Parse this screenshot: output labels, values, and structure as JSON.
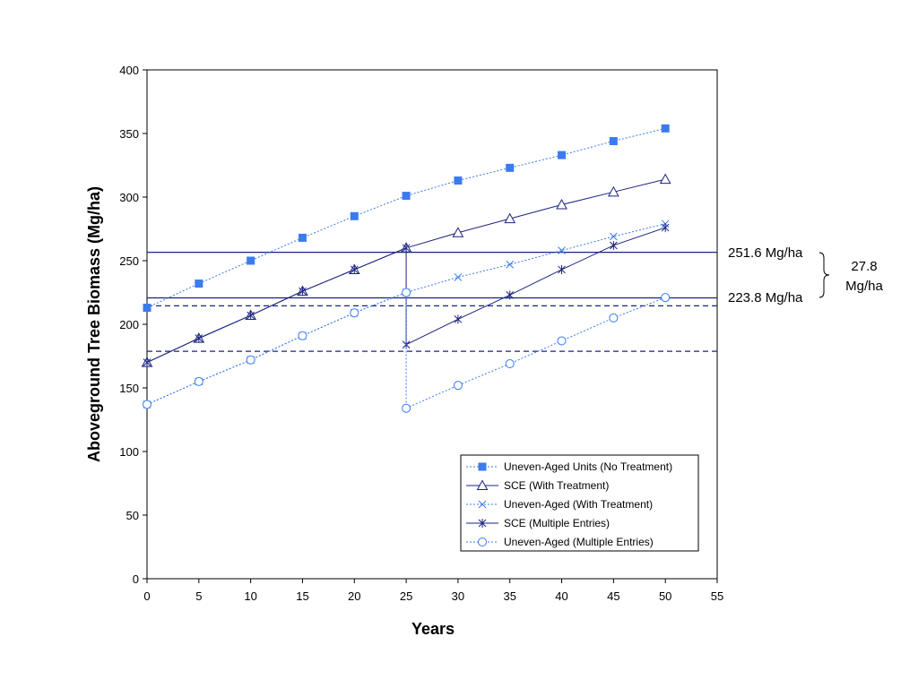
{
  "chart_data": {
    "type": "line",
    "title": "",
    "xlabel": "Years",
    "ylabel": "Aboveground Tree Biomass (Mg/ha)",
    "xlim": [
      0,
      55
    ],
    "ylim": [
      0,
      400
    ],
    "xticks": [
      0,
      5,
      10,
      15,
      20,
      25,
      30,
      35,
      40,
      45,
      50,
      55
    ],
    "yticks": [
      0,
      50,
      100,
      150,
      200,
      250,
      300,
      350,
      400
    ],
    "grid": false,
    "legend_position": "bottom-right",
    "series": [
      {
        "name": "Uneven-Aged Units (No Treatment)",
        "color": "#3b7bef",
        "line_style": "dotted",
        "marker": "filled-square",
        "points": [
          [
            0,
            213
          ],
          [
            5,
            232
          ],
          [
            10,
            250
          ],
          [
            15,
            268
          ],
          [
            20,
            285
          ],
          [
            25,
            301
          ],
          [
            30,
            313
          ],
          [
            35,
            323
          ],
          [
            40,
            333
          ],
          [
            45,
            344
          ],
          [
            50,
            354
          ]
        ]
      },
      {
        "name": "SCE (With Treatment)",
        "color": "#1a237e",
        "line_style": "solid",
        "marker": "open-triangle",
        "points": [
          [
            0,
            170
          ],
          [
            5,
            189
          ],
          [
            10,
            207
          ],
          [
            15,
            226
          ],
          [
            20,
            243
          ],
          [
            25,
            260
          ],
          [
            30,
            272
          ],
          [
            35,
            283
          ],
          [
            40,
            294
          ],
          [
            45,
            304
          ],
          [
            50,
            314
          ]
        ]
      },
      {
        "name": "Uneven-Aged (With Treatment)",
        "color": "#3b7bef",
        "line_style": "dotted",
        "marker": "x",
        "points": [
          [
            0,
            137
          ],
          [
            5,
            155
          ],
          [
            10,
            172
          ],
          [
            15,
            191
          ],
          [
            20,
            209
          ],
          [
            25,
            225
          ],
          [
            30,
            237
          ],
          [
            35,
            247
          ],
          [
            40,
            258
          ],
          [
            45,
            269
          ],
          [
            50,
            279
          ]
        ]
      },
      {
        "name": "SCE (Multiple Entries)",
        "color": "#1a237e",
        "line_style": "solid",
        "marker": "star",
        "points": [
          [
            0,
            170
          ],
          [
            5,
            189
          ],
          [
            10,
            207
          ],
          [
            15,
            226
          ],
          [
            20,
            243
          ],
          [
            25,
            260
          ],
          [
            25,
            184
          ],
          [
            30,
            204
          ],
          [
            35,
            223
          ],
          [
            40,
            243
          ],
          [
            45,
            262
          ],
          [
            50,
            276
          ]
        ]
      },
      {
        "name": "Uneven-Aged (Multiple Entries)",
        "color": "#3b7bef",
        "line_style": "dotted",
        "marker": "open-circle",
        "points": [
          [
            0,
            137
          ],
          [
            5,
            155
          ],
          [
            10,
            172
          ],
          [
            15,
            191
          ],
          [
            20,
            209
          ],
          [
            25,
            225
          ],
          [
            25,
            134
          ],
          [
            30,
            152
          ],
          [
            35,
            169
          ],
          [
            40,
            187
          ],
          [
            45,
            205
          ],
          [
            50,
            221
          ]
        ]
      }
    ],
    "reference_lines": [
      {
        "y": 256.6,
        "style": "solid",
        "color": "#1a237e"
      },
      {
        "y": 220.8,
        "style": "solid",
        "color": "#1a237e"
      },
      {
        "y": 214.5,
        "style": "dashed",
        "color": "#1a237e"
      },
      {
        "y": 178.8,
        "style": "dashed",
        "color": "#1a237e"
      }
    ],
    "annotations": {
      "upper": "251.6 Mg/ha",
      "lower": "223.8 Mg/ha",
      "difference_line1": "27.8",
      "difference_line2": "Mg/ha"
    }
  }
}
